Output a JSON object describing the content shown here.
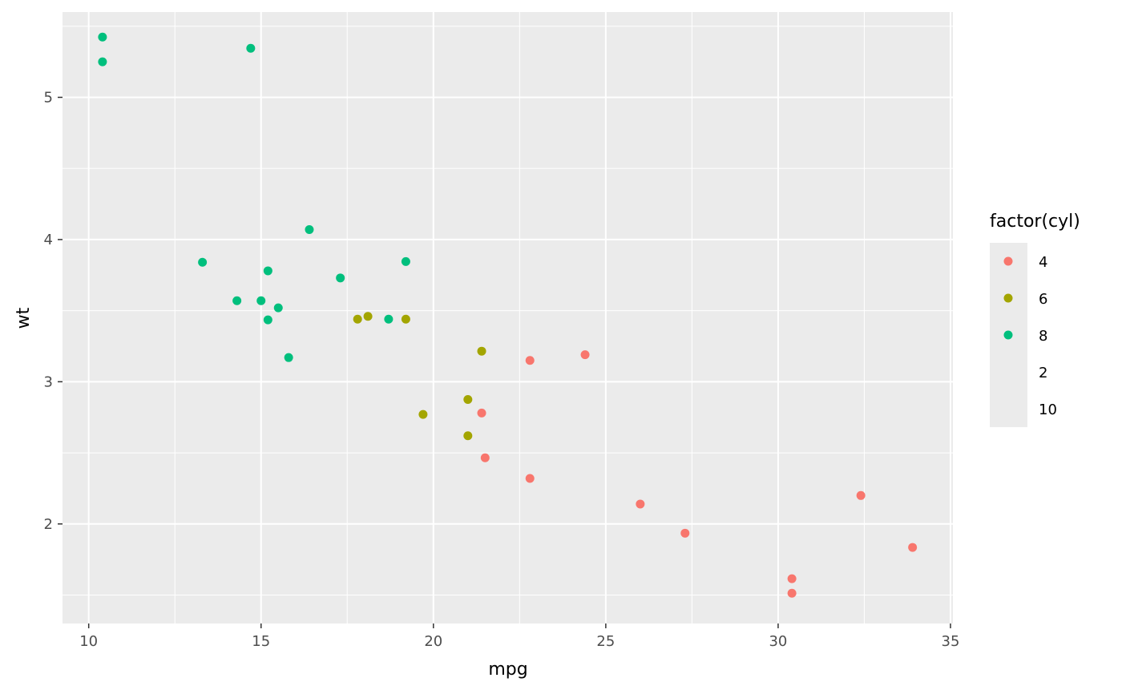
{
  "chart_data": {
    "type": "scatter",
    "title": "",
    "xlabel": "mpg",
    "ylabel": "wt",
    "xlim": [
      9.24,
      35.07
    ],
    "ylim": [
      1.3,
      5.6
    ],
    "x_ticks": [
      10,
      15,
      20,
      25,
      30,
      35
    ],
    "x_tick_labels": [
      "10",
      "15",
      "20",
      "25",
      "30",
      "35"
    ],
    "y_ticks": [
      2,
      3,
      4,
      5
    ],
    "y_tick_labels": [
      "2",
      "3",
      "4",
      "5"
    ],
    "grid": true,
    "background": "#ebebeb",
    "legend": {
      "title": "factor(cyl)",
      "position": "right",
      "entries": [
        {
          "label": "4",
          "color": "#f8766d",
          "marker": true
        },
        {
          "label": "6",
          "color": "#a3a500",
          "marker": true
        },
        {
          "label": "8",
          "color": "#00bf7d",
          "marker": true
        },
        {
          "label": "2",
          "color": "",
          "marker": false
        },
        {
          "label": "10",
          "color": "",
          "marker": false
        }
      ]
    },
    "series": [
      {
        "name": "4",
        "color": "#f8766d",
        "points": [
          {
            "x": 22.8,
            "y": 3.15
          },
          {
            "x": 24.4,
            "y": 3.19
          },
          {
            "x": 21.4,
            "y": 2.78
          },
          {
            "x": 21.5,
            "y": 2.465
          },
          {
            "x": 22.8,
            "y": 2.32
          },
          {
            "x": 26.0,
            "y": 2.14
          },
          {
            "x": 27.3,
            "y": 1.935
          },
          {
            "x": 32.4,
            "y": 2.2
          },
          {
            "x": 33.9,
            "y": 1.835
          },
          {
            "x": 30.4,
            "y": 1.615
          },
          {
            "x": 30.4,
            "y": 1.513
          }
        ]
      },
      {
        "name": "6",
        "color": "#a3a500",
        "points": [
          {
            "x": 21.4,
            "y": 3.215
          },
          {
            "x": 21.0,
            "y": 2.875
          },
          {
            "x": 21.0,
            "y": 2.62
          },
          {
            "x": 19.7,
            "y": 2.77
          },
          {
            "x": 17.8,
            "y": 3.44
          },
          {
            "x": 18.1,
            "y": 3.46
          },
          {
            "x": 19.2,
            "y": 3.44
          }
        ]
      },
      {
        "name": "8",
        "color": "#00bf7d",
        "points": [
          {
            "x": 10.4,
            "y": 5.424
          },
          {
            "x": 10.4,
            "y": 5.25
          },
          {
            "x": 14.7,
            "y": 5.345
          },
          {
            "x": 16.4,
            "y": 4.07
          },
          {
            "x": 13.3,
            "y": 3.84
          },
          {
            "x": 19.2,
            "y": 3.845
          },
          {
            "x": 15.2,
            "y": 3.78
          },
          {
            "x": 17.3,
            "y": 3.73
          },
          {
            "x": 14.3,
            "y": 3.57
          },
          {
            "x": 15.0,
            "y": 3.57
          },
          {
            "x": 15.5,
            "y": 3.52
          },
          {
            "x": 15.2,
            "y": 3.435
          },
          {
            "x": 18.7,
            "y": 3.44
          },
          {
            "x": 15.8,
            "y": 3.17
          }
        ]
      }
    ]
  }
}
